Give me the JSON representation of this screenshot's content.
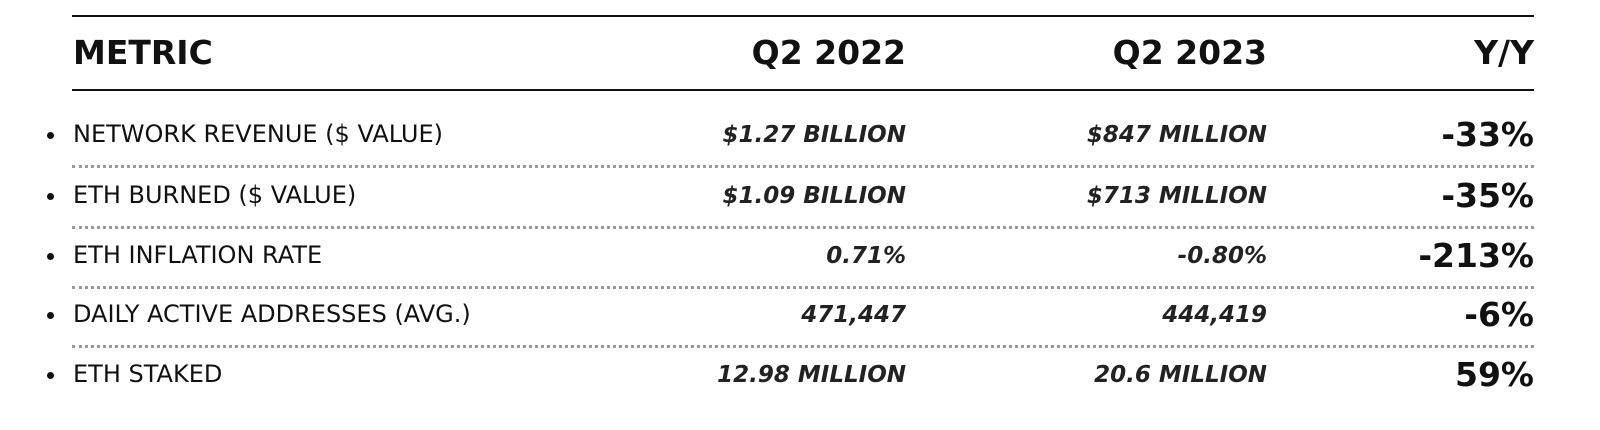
{
  "table": {
    "columns": [
      "METRIC",
      "Q2 2022",
      "Q2 2023",
      "Y/Y"
    ],
    "rows": [
      [
        "NETWORK REVENUE ($ VALUE)",
        "$1.27 BILLION",
        "$847 MILLION",
        "-33%"
      ],
      [
        "ETH BURNED ($ VALUE)",
        "$1.09 BILLION",
        "$713 MILLION",
        "-35%"
      ],
      [
        "ETH INFLATION RATE",
        "0.71%",
        "-0.80%",
        "-213%"
      ],
      [
        "DAILY ACTIVE ADDRESSES (AVG.)",
        "471,447",
        "444,419",
        "-6%"
      ],
      [
        "ETH STAKED",
        "12.98 MILLION",
        "20.6 MILLION",
        "59%"
      ]
    ]
  }
}
